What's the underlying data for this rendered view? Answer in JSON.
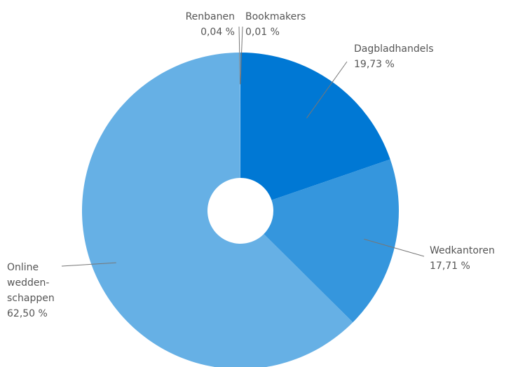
{
  "chart_data": {
    "type": "donut",
    "categories": [
      "Dagbladhandels",
      "Wedkantoren",
      "Online wedden-schappen",
      "Renbanen",
      "Bookmakers"
    ],
    "values": [
      19.73,
      17.71,
      62.5,
      0.04,
      0.01
    ],
    "value_labels": [
      "19,73 %",
      "17,71 %",
      "62,50 %",
      "0,04 %",
      "0,01 %"
    ],
    "colors": [
      "#0078d4",
      "#3596dd",
      "#66b0e5",
      "#9cc8ee",
      "#c4dcf3"
    ]
  }
}
